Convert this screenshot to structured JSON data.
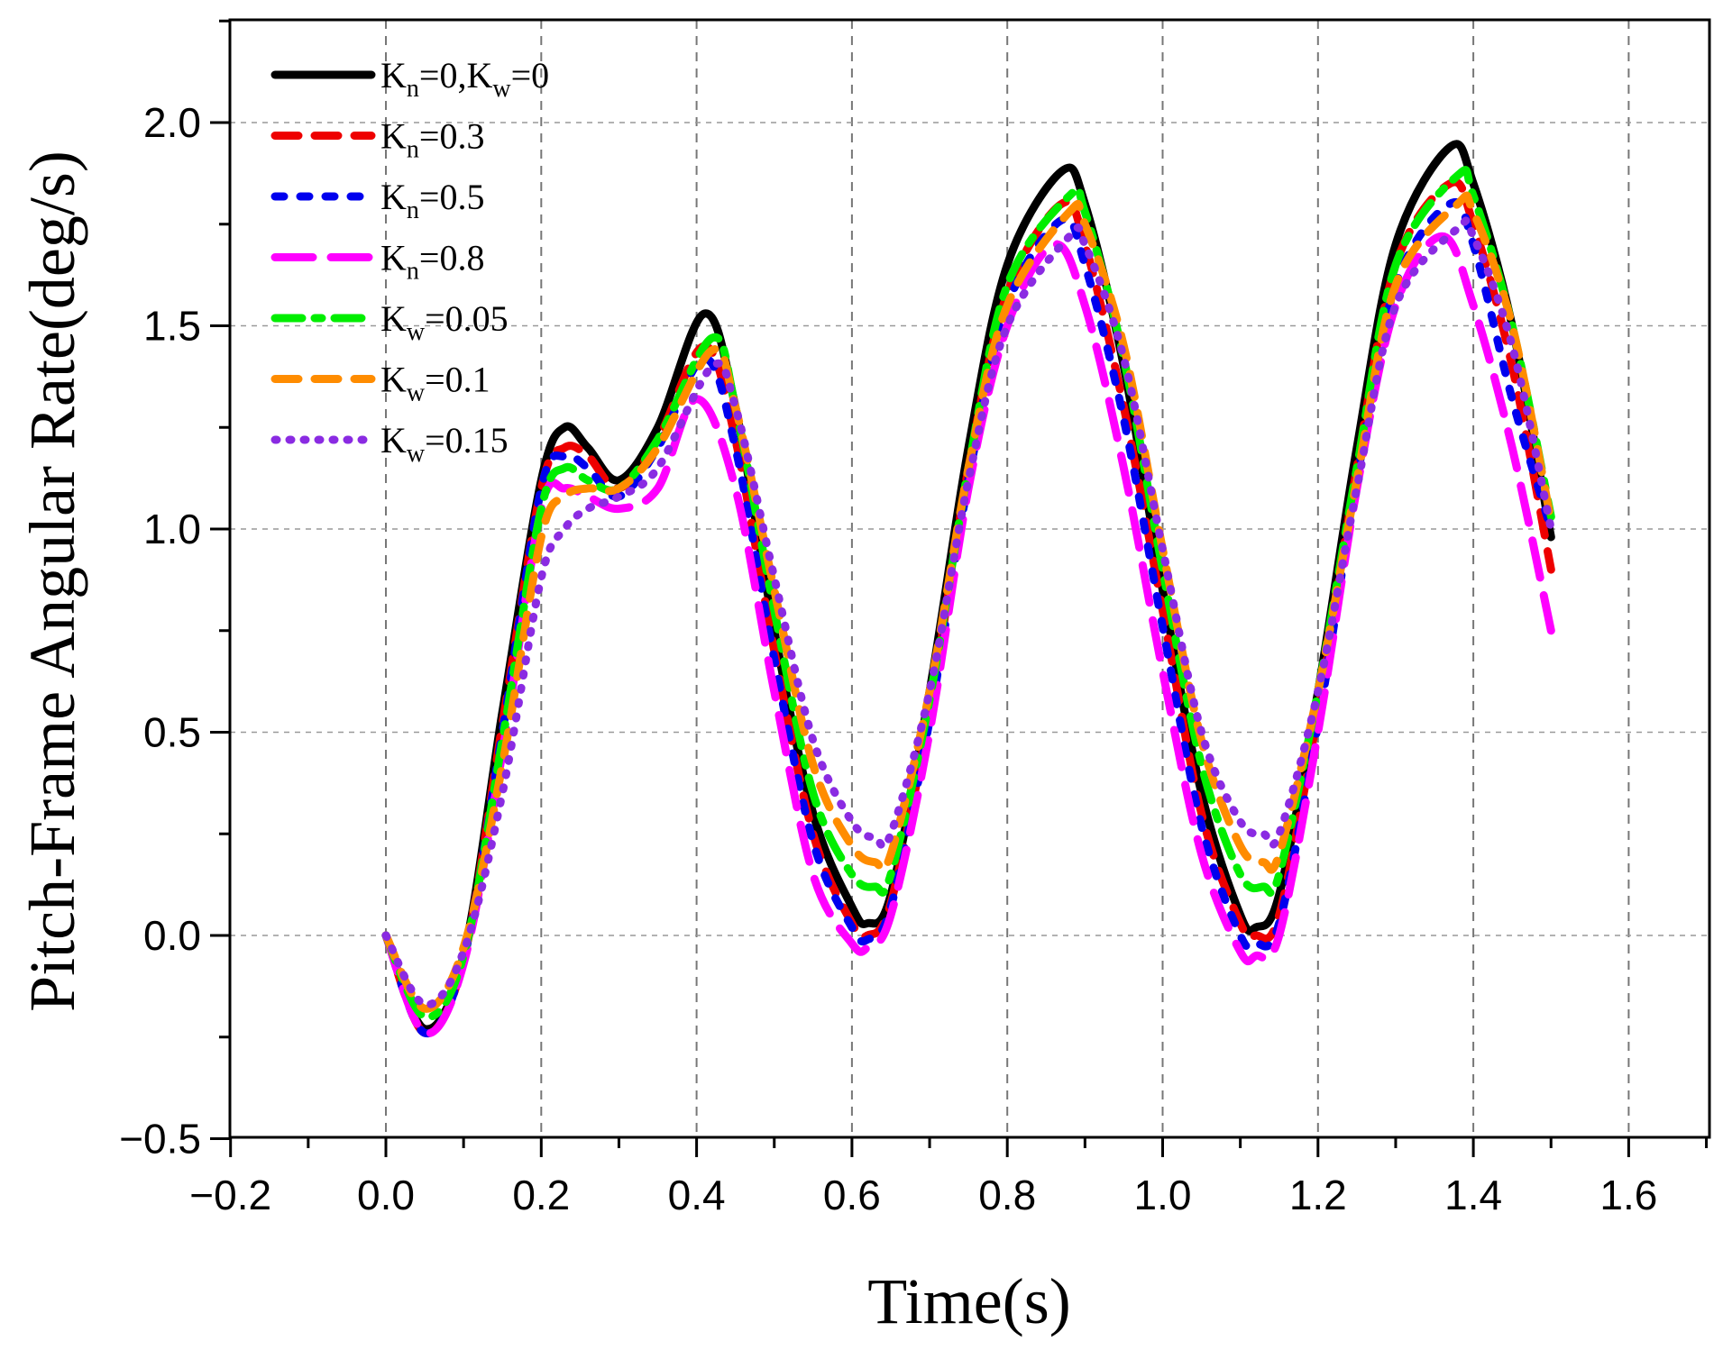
{
  "chart_data": {
    "type": "line",
    "title": "",
    "xlabel": "Time(s)",
    "ylabel": "Pitch-Frame Angular Rate(deg/s)",
    "xlim": [
      -0.2,
      1.7
    ],
    "ylim": [
      -0.5,
      2.25
    ],
    "x_ticks": [
      -0.2,
      0.0,
      0.2,
      0.4,
      0.6,
      0.8,
      1.0,
      1.2,
      1.4,
      1.6
    ],
    "x_tick_labels": [
      "−0.2",
      "0.0",
      "0.2",
      "0.4",
      "0.6",
      "0.8",
      "1.0",
      "1.2",
      "1.4",
      "1.6"
    ],
    "y_ticks": [
      -0.5,
      0.0,
      0.5,
      1.0,
      1.5,
      2.0
    ],
    "y_tick_labels": [
      "−0.5",
      "0.0",
      "0.5",
      "1.0",
      "1.5",
      "2.0"
    ],
    "grid": true,
    "legend_position": "top-left",
    "series": [
      {
        "name": "Kn=0,Kw=0",
        "legend": {
          "p1": "K",
          "s1": "n",
          "p2": "=0,K",
          "s2": "w",
          "p3": "=0"
        },
        "color": "#000000",
        "style": "solid",
        "x": [
          0,
          0.05,
          0.1,
          0.15,
          0.2,
          0.23,
          0.26,
          0.3,
          0.35,
          0.41,
          0.45,
          0.5,
          0.55,
          0.6,
          0.62,
          0.65,
          0.7,
          0.75,
          0.8,
          0.87,
          0.9,
          0.95,
          1.0,
          1.05,
          1.1,
          1.12,
          1.15,
          1.2,
          1.25,
          1.3,
          1.37,
          1.4,
          1.45,
          1.5
        ],
        "y": [
          0,
          -0.23,
          -0.05,
          0.55,
          1.12,
          1.25,
          1.2,
          1.12,
          1.25,
          1.53,
          1.3,
          0.75,
          0.3,
          0.07,
          0.03,
          0.1,
          0.6,
          1.2,
          1.65,
          1.88,
          1.8,
          1.4,
          0.85,
          0.35,
          0.05,
          0.02,
          0.1,
          0.6,
          1.2,
          1.7,
          1.94,
          1.85,
          1.5,
          0.98
        ]
      },
      {
        "name": "Kn=0.3",
        "legend": {
          "p1": "K",
          "s1": "n",
          "p2": "=0.3"
        },
        "color": "#ee0000",
        "style": "dash",
        "x": [
          0,
          0.05,
          0.1,
          0.15,
          0.2,
          0.23,
          0.26,
          0.3,
          0.35,
          0.41,
          0.45,
          0.5,
          0.55,
          0.6,
          0.62,
          0.65,
          0.7,
          0.75,
          0.8,
          0.87,
          0.9,
          0.95,
          1.0,
          1.05,
          1.1,
          1.12,
          1.15,
          1.2,
          1.25,
          1.3,
          1.37,
          1.4,
          1.45,
          1.5
        ],
        "y": [
          0,
          -0.24,
          -0.06,
          0.52,
          1.1,
          1.2,
          1.18,
          1.1,
          1.22,
          1.45,
          1.22,
          0.7,
          0.25,
          0.03,
          0.0,
          0.08,
          0.55,
          1.15,
          1.58,
          1.8,
          1.7,
          1.3,
          0.8,
          0.3,
          0.03,
          0.0,
          0.05,
          0.55,
          1.15,
          1.65,
          1.85,
          1.75,
          1.4,
          0.9
        ]
      },
      {
        "name": "Kn=0.5",
        "legend": {
          "p1": "K",
          "s1": "n",
          "p2": "=0.5"
        },
        "color": "#0000ee",
        "style": "dot-long",
        "x": [
          0,
          0.05,
          0.1,
          0.15,
          0.2,
          0.23,
          0.26,
          0.3,
          0.35,
          0.41,
          0.45,
          0.5,
          0.55,
          0.6,
          0.62,
          0.65,
          0.7,
          0.75,
          0.8,
          0.87,
          0.9,
          0.95,
          1.0,
          1.05,
          1.1,
          1.12,
          1.15,
          1.2,
          1.25,
          1.3,
          1.37,
          1.4,
          1.45,
          1.5
        ],
        "y": [
          0,
          -0.24,
          -0.06,
          0.5,
          1.1,
          1.18,
          1.15,
          1.08,
          1.2,
          1.42,
          1.2,
          0.68,
          0.23,
          0.02,
          -0.01,
          0.07,
          0.53,
          1.12,
          1.55,
          1.76,
          1.65,
          1.27,
          0.76,
          0.27,
          0.0,
          -0.02,
          0.03,
          0.52,
          1.12,
          1.6,
          1.8,
          1.7,
          1.32,
          1.0
        ]
      },
      {
        "name": "Kn=0.8",
        "legend": {
          "p1": "K",
          "s1": "n",
          "p2": "=0.8"
        },
        "color": "#ff00ff",
        "style": "dash-long",
        "x": [
          0,
          0.05,
          0.1,
          0.15,
          0.2,
          0.23,
          0.26,
          0.3,
          0.35,
          0.4,
          0.45,
          0.5,
          0.55,
          0.6,
          0.62,
          0.65,
          0.7,
          0.75,
          0.8,
          0.86,
          0.9,
          0.95,
          1.0,
          1.05,
          1.1,
          1.12,
          1.15,
          1.2,
          1.25,
          1.3,
          1.36,
          1.4,
          1.45,
          1.5
        ],
        "y": [
          0,
          -0.24,
          -0.07,
          0.45,
          1.05,
          1.1,
          1.08,
          1.05,
          1.1,
          1.32,
          1.1,
          0.6,
          0.15,
          -0.02,
          -0.03,
          0.05,
          0.5,
          1.1,
          1.5,
          1.7,
          1.55,
          1.15,
          0.65,
          0.2,
          -0.04,
          -0.05,
          0.0,
          0.5,
          1.1,
          1.55,
          1.72,
          1.55,
          1.2,
          0.75
        ]
      },
      {
        "name": "Kw=0.05",
        "legend": {
          "p1": "K",
          "s1": "w",
          "p2": "=0.05"
        },
        "color": "#00ee00",
        "style": "dashdot",
        "x": [
          0,
          0.05,
          0.1,
          0.15,
          0.2,
          0.23,
          0.26,
          0.3,
          0.35,
          0.42,
          0.45,
          0.5,
          0.55,
          0.6,
          0.63,
          0.65,
          0.7,
          0.75,
          0.8,
          0.88,
          0.9,
          0.95,
          1.0,
          1.05,
          1.1,
          1.13,
          1.15,
          1.2,
          1.25,
          1.3,
          1.38,
          1.4,
          1.45,
          1.5
        ],
        "y": [
          0,
          -0.2,
          -0.05,
          0.48,
          1.05,
          1.15,
          1.12,
          1.1,
          1.22,
          1.47,
          1.3,
          0.8,
          0.35,
          0.15,
          0.12,
          0.15,
          0.58,
          1.15,
          1.6,
          1.82,
          1.78,
          1.42,
          0.9,
          0.42,
          0.15,
          0.12,
          0.15,
          0.6,
          1.15,
          1.65,
          1.87,
          1.82,
          1.5,
          1.03
        ]
      },
      {
        "name": "Kw=0.1",
        "legend": {
          "p1": "K",
          "s1": "w",
          "p2": "=0.1"
        },
        "color": "#ff8c00",
        "style": "dash",
        "x": [
          0,
          0.05,
          0.1,
          0.15,
          0.2,
          0.23,
          0.26,
          0.3,
          0.35,
          0.42,
          0.45,
          0.5,
          0.55,
          0.6,
          0.63,
          0.65,
          0.7,
          0.75,
          0.8,
          0.88,
          0.9,
          0.95,
          1.0,
          1.05,
          1.1,
          1.13,
          1.15,
          1.2,
          1.25,
          1.3,
          1.38,
          1.4,
          1.45,
          1.5
        ],
        "y": [
          0,
          -0.18,
          -0.03,
          0.42,
          0.98,
          1.08,
          1.1,
          1.1,
          1.2,
          1.44,
          1.3,
          0.85,
          0.42,
          0.22,
          0.18,
          0.2,
          0.6,
          1.15,
          1.55,
          1.78,
          1.75,
          1.45,
          0.95,
          0.48,
          0.22,
          0.18,
          0.2,
          0.6,
          1.12,
          1.6,
          1.8,
          1.78,
          1.5,
          1.02
        ]
      },
      {
        "name": "Kw=0.15",
        "legend": {
          "p1": "K",
          "s1": "w",
          "p2": "=0.15"
        },
        "color": "#8a2be2",
        "style": "dot",
        "x": [
          0,
          0.05,
          0.1,
          0.15,
          0.2,
          0.23,
          0.26,
          0.3,
          0.35,
          0.42,
          0.45,
          0.5,
          0.55,
          0.6,
          0.63,
          0.65,
          0.7,
          0.75,
          0.8,
          0.88,
          0.9,
          0.95,
          1.0,
          1.05,
          1.1,
          1.13,
          1.15,
          1.2,
          1.25,
          1.3,
          1.38,
          1.4,
          1.45,
          1.5
        ],
        "y": [
          0,
          -0.17,
          -0.04,
          0.35,
          0.88,
          1.0,
          1.05,
          1.08,
          1.15,
          1.4,
          1.3,
          0.88,
          0.48,
          0.28,
          0.24,
          0.25,
          0.6,
          1.12,
          1.5,
          1.72,
          1.7,
          1.42,
          0.95,
          0.5,
          0.28,
          0.25,
          0.25,
          0.6,
          1.1,
          1.55,
          1.74,
          1.72,
          1.45,
          1.0
        ]
      }
    ]
  }
}
